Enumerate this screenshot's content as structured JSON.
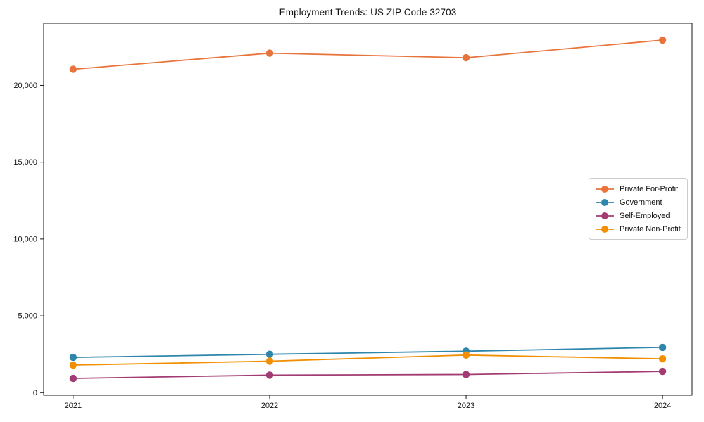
{
  "figure": {
    "background_color": "#ffffff",
    "spine_color": "#1a1a1a",
    "text_color": "#111111",
    "legend_border_color": "#cccccc"
  },
  "chart_data": {
    "type": "line",
    "title": "Employment Trends: US ZIP Code 32703",
    "categories": [
      2021,
      2022,
      2023,
      2024
    ],
    "xtick_labels": [
      "2021",
      "2022",
      "2023",
      "2024"
    ],
    "ytick_values": [
      0,
      5000,
      10000,
      15000,
      20000
    ],
    "ytick_labels": [
      "0",
      "5,000",
      "10,000",
      "15,000",
      "20,000"
    ],
    "xlabel": "",
    "ylabel": "",
    "xlim": [
      2020.85,
      2024.15
    ],
    "ylim": [
      -170,
      24050
    ],
    "grid": false,
    "legend_position": "center-right",
    "marker": "circle",
    "series": [
      {
        "name": "Private For-Profit",
        "color": "#e8743b",
        "values": [
          21050,
          22100,
          21800,
          22950
        ]
      },
      {
        "name": "Government",
        "color": "#2e86ab",
        "values": [
          2300,
          2500,
          2700,
          2950
        ]
      },
      {
        "name": "Self-Employed",
        "color": "#a23b72",
        "values": [
          930,
          1140,
          1180,
          1380
        ]
      },
      {
        "name": "Private Non-Profit",
        "color": "#f18f01",
        "values": [
          1800,
          2050,
          2450,
          2200
        ]
      }
    ]
  }
}
